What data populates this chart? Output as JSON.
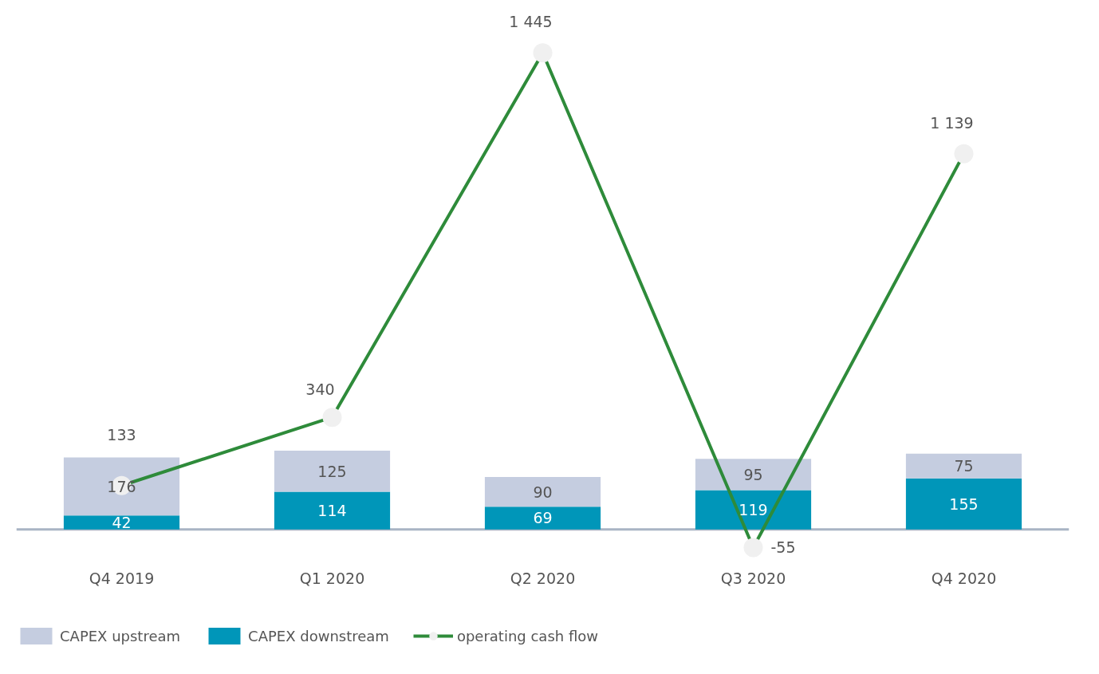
{
  "chart_data": {
    "type": "bar",
    "stacked": true,
    "categories": [
      "Q4 2019",
      "Q1 2020",
      "Q2 2020",
      "Q3 2020",
      "Q4 2020"
    ],
    "series": [
      {
        "name": "CAPEX downstream",
        "color": "#0096b9",
        "values": [
          42,
          114,
          69,
          119,
          155
        ],
        "value_labels": [
          "42",
          "114",
          "69",
          "119",
          "155"
        ]
      },
      {
        "name": "CAPEX upstream",
        "color": "#c5cde0",
        "values": [
          176,
          125,
          90,
          95,
          75
        ],
        "value_labels": [
          "176",
          "125",
          "90",
          "95",
          "75"
        ]
      },
      {
        "name": "operating cash flow",
        "type": "line",
        "color": "#2e8b3a",
        "values": [
          133,
          340,
          1445,
          -55,
          1139
        ],
        "value_labels": [
          "133",
          "340",
          "1 445",
          "-55",
          "1 139"
        ]
      }
    ],
    "marker": "circle",
    "line_style": "solid",
    "legend": "bottom",
    "grid": false
  }
}
